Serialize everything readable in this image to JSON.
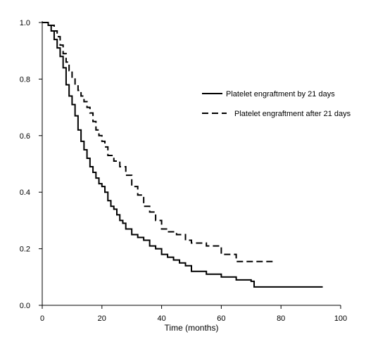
{
  "chart_data": {
    "type": "line",
    "title": "",
    "xlabel": "Time (months)",
    "ylabel": "",
    "xlim": [
      0,
      100
    ],
    "ylim": [
      0,
      1.0
    ],
    "x_ticks": [
      "0",
      "20",
      "40",
      "60",
      "80",
      "100"
    ],
    "y_ticks": [
      "0.0",
      "0.2",
      "0.4",
      "0.6",
      "0.8",
      "1.0"
    ],
    "x_tick_values": [
      0,
      20,
      40,
      60,
      80,
      100
    ],
    "y_tick_values": [
      0,
      0.2,
      0.4,
      0.6,
      0.8,
      1.0
    ],
    "grid": false,
    "legend_position": "right",
    "series": [
      {
        "name": "Platelet engraftment by 21 days",
        "style": "solid",
        "color": "#000000",
        "x": [
          0,
          1,
          2,
          3,
          4,
          5,
          6,
          7,
          8,
          9,
          10,
          11,
          12,
          13,
          14,
          15,
          16,
          17,
          18,
          19,
          20,
          21,
          22,
          23,
          24,
          25,
          26,
          27,
          28,
          30,
          32,
          34,
          36,
          38,
          40,
          42,
          44,
          46,
          48,
          50,
          55,
          60,
          65,
          70,
          71,
          80,
          90,
          94
        ],
        "y": [
          1.0,
          1.0,
          0.99,
          0.97,
          0.94,
          0.91,
          0.88,
          0.84,
          0.78,
          0.74,
          0.71,
          0.67,
          0.62,
          0.58,
          0.55,
          0.52,
          0.49,
          0.47,
          0.45,
          0.43,
          0.42,
          0.4,
          0.37,
          0.35,
          0.34,
          0.32,
          0.3,
          0.29,
          0.27,
          0.25,
          0.24,
          0.23,
          0.21,
          0.2,
          0.18,
          0.17,
          0.16,
          0.15,
          0.14,
          0.12,
          0.11,
          0.1,
          0.09,
          0.085,
          0.065,
          0.065,
          0.065,
          0.065
        ]
      },
      {
        "name": "Platelet engraftment after 21 days",
        "style": "dashed",
        "color": "#000000",
        "x": [
          0,
          2,
          4,
          5,
          6,
          7,
          8,
          9,
          10,
          11,
          12,
          13,
          14,
          15,
          16,
          17,
          18,
          19,
          20,
          21,
          22,
          24,
          26,
          28,
          30,
          32,
          34,
          36,
          38,
          40,
          42,
          45,
          48,
          50,
          55,
          60,
          65,
          70,
          75,
          78
        ],
        "y": [
          1.0,
          0.99,
          0.97,
          0.95,
          0.92,
          0.89,
          0.86,
          0.83,
          0.8,
          0.78,
          0.76,
          0.74,
          0.72,
          0.7,
          0.68,
          0.65,
          0.62,
          0.6,
          0.58,
          0.56,
          0.53,
          0.51,
          0.49,
          0.46,
          0.42,
          0.39,
          0.35,
          0.33,
          0.3,
          0.27,
          0.26,
          0.25,
          0.23,
          0.22,
          0.21,
          0.18,
          0.155,
          0.155,
          0.155,
          0.155
        ]
      }
    ]
  }
}
